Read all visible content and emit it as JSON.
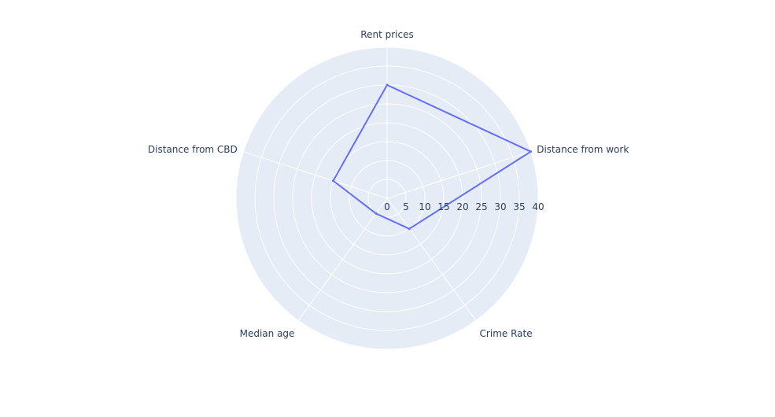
{
  "chart_data": {
    "type": "radar",
    "categories": [
      "Rent prices",
      "Distance from work",
      "Crime Rate",
      "Median age",
      "Distance from CBD"
    ],
    "series": [
      {
        "values": [
          30,
          40,
          10,
          5,
          15
        ]
      }
    ],
    "radial_axis": {
      "range": [
        0,
        40
      ],
      "ticks": [
        "0",
        "5",
        "10",
        "15",
        "20",
        "25",
        "30",
        "35",
        "40"
      ]
    },
    "colors": {
      "background": "#e5ecf6",
      "grid": "#ffffff",
      "line": "#636efa",
      "text": "#2a3f5f"
    },
    "grid": true,
    "legend": "none"
  }
}
